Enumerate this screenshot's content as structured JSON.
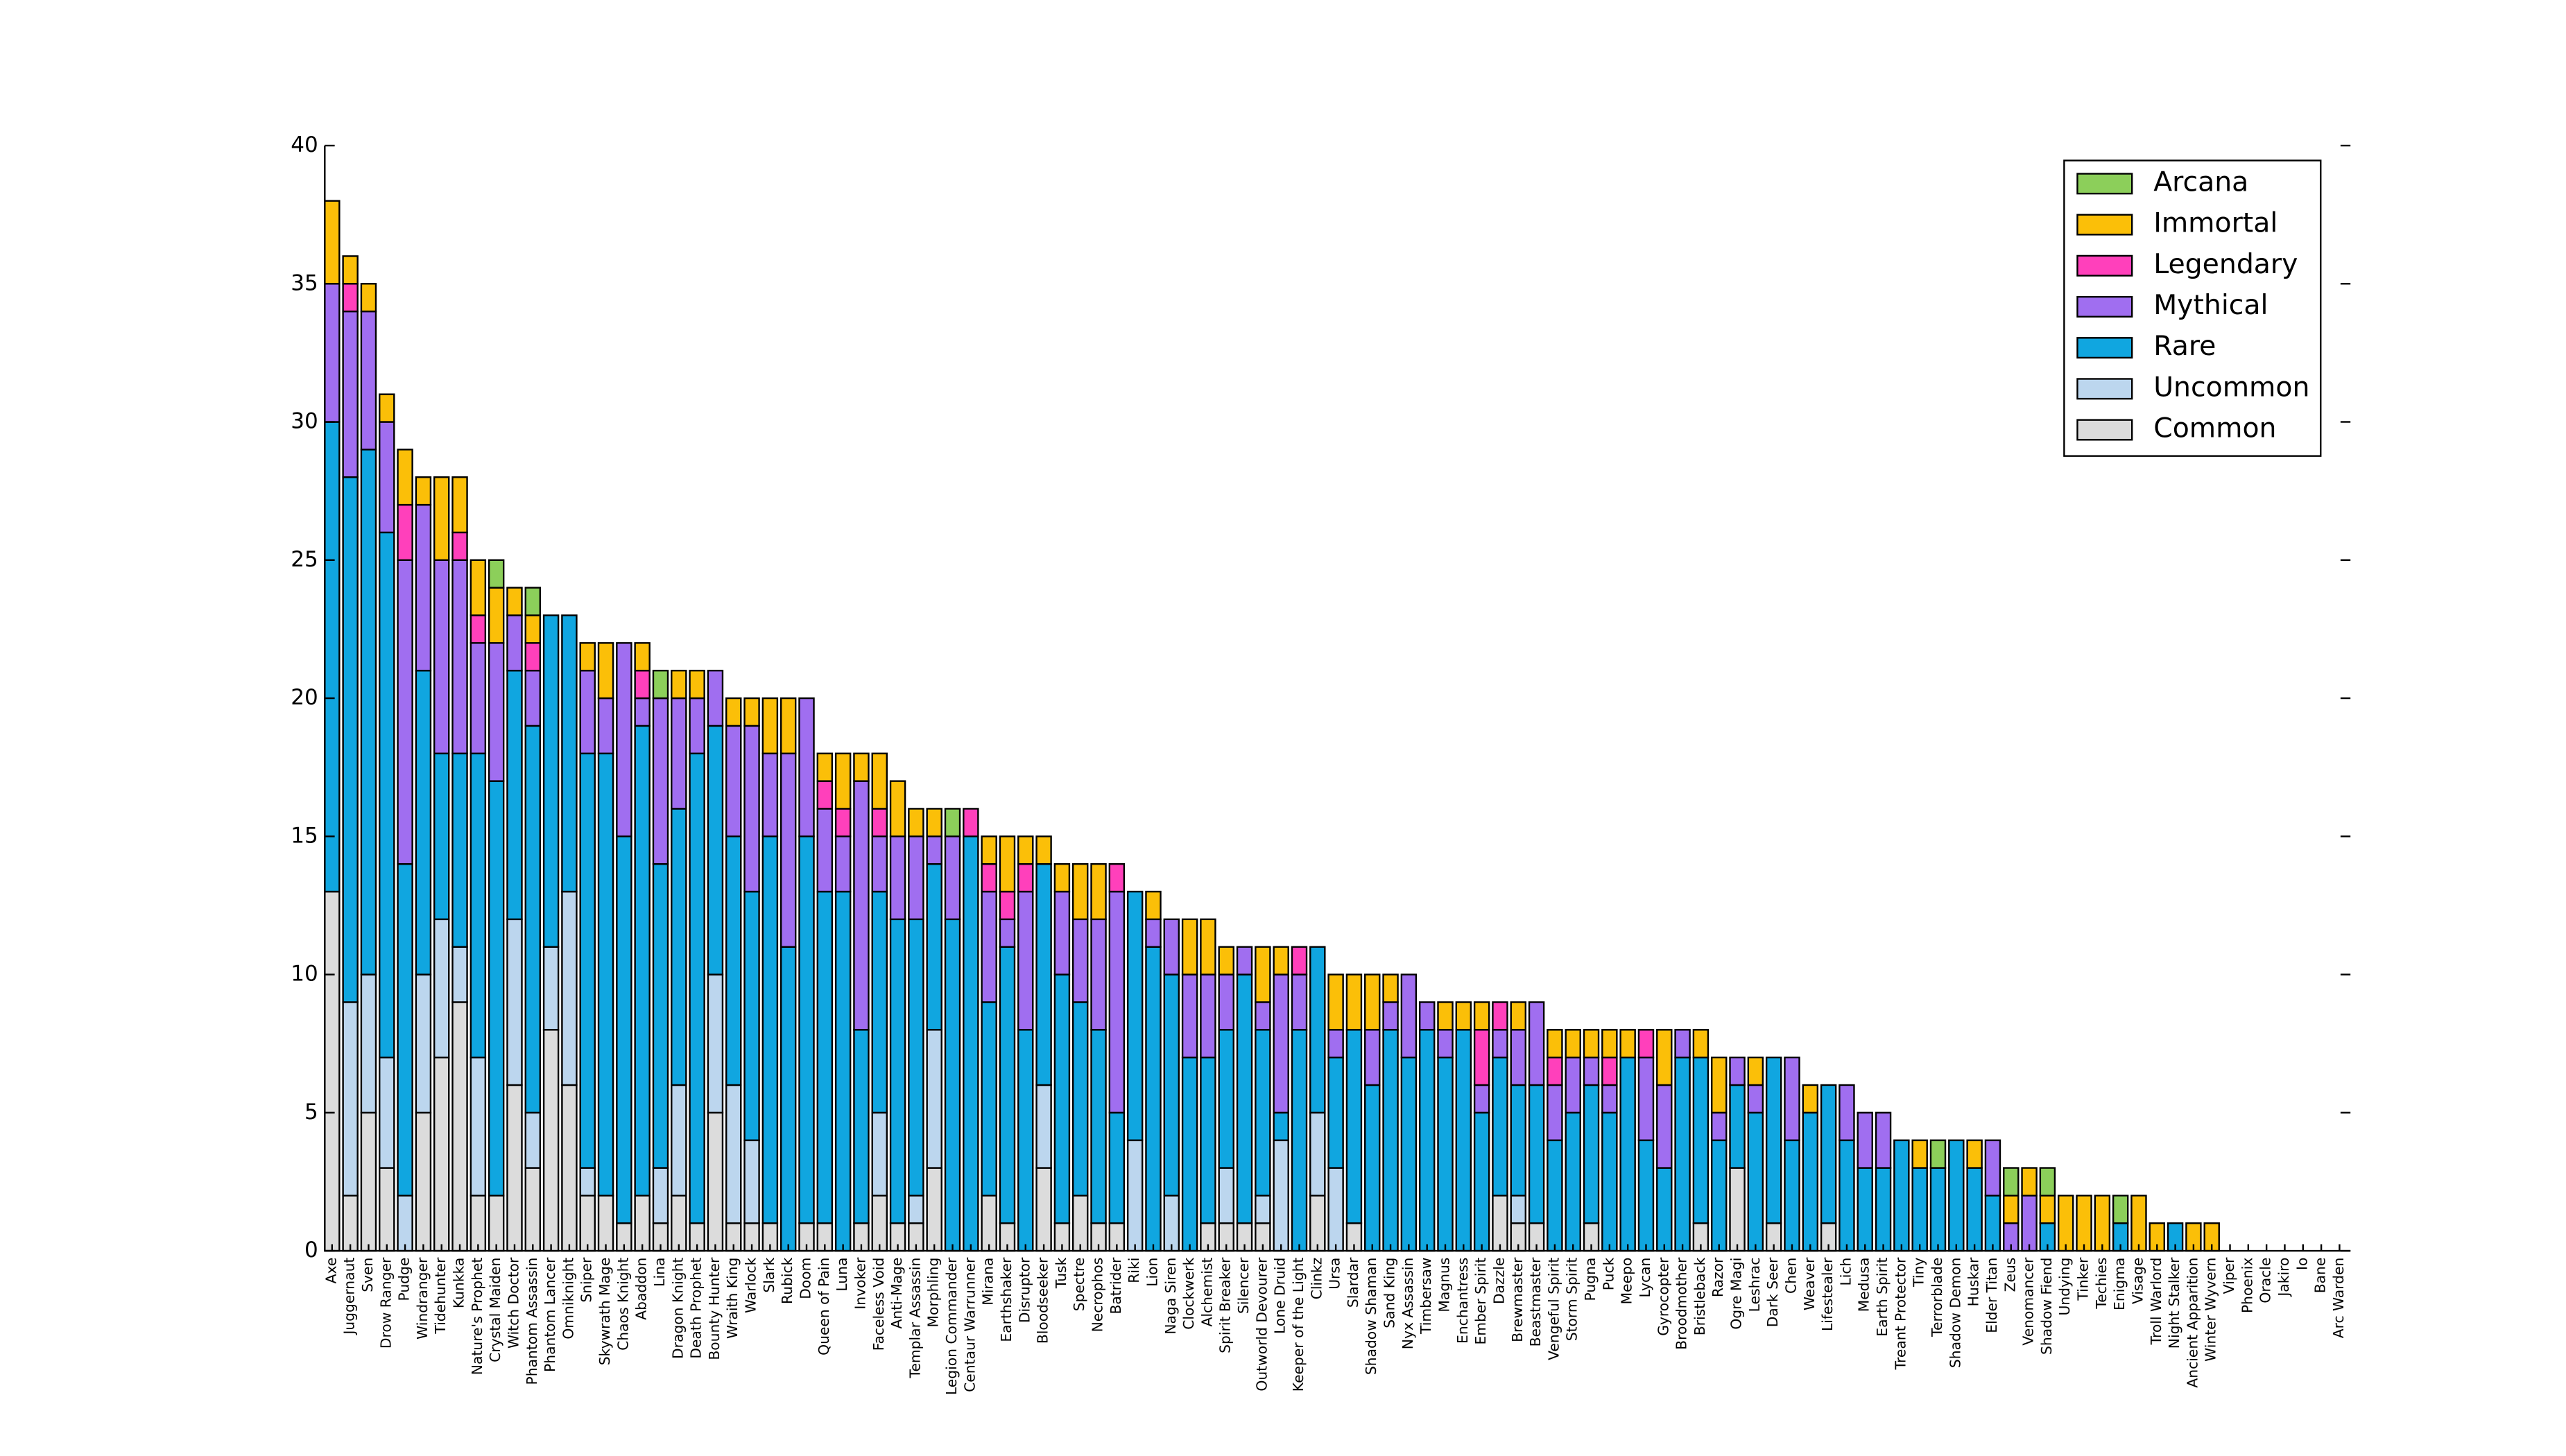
{
  "chart_data": {
    "type": "stacked-bar",
    "categories": [
      "Axe",
      "Juggernaut",
      "Sven",
      "Drow Ranger",
      "Pudge",
      "Windranger",
      "Tidehunter",
      "Kunkka",
      "Nature's Prophet",
      "Crystal Maiden",
      "Witch Doctor",
      "Phantom Assassin",
      "Phantom Lancer",
      "Omniknight",
      "Sniper",
      "Skywrath Mage",
      "Chaos Knight",
      "Abaddon",
      "Lina",
      "Dragon Knight",
      "Death Prophet",
      "Bounty Hunter",
      "Wraith King",
      "Warlock",
      "Slark",
      "Rubick",
      "Doom",
      "Queen of Pain",
      "Luna",
      "Invoker",
      "Faceless Void",
      "Anti-Mage",
      "Templar Assassin",
      "Morphling",
      "Legion Commander",
      "Centaur Warrunner",
      "Mirana",
      "Earthshaker",
      "Disruptor",
      "Bloodseeker",
      "Tusk",
      "Spectre",
      "Necrophos",
      "Batrider",
      "Riki",
      "Lion",
      "Naga Siren",
      "Clockwerk",
      "Alchemist",
      "Spirit Breaker",
      "Silencer",
      "Outworld Devourer",
      "Lone Druid",
      "Keeper of the Light",
      "Clinkz",
      "Ursa",
      "Slardar",
      "Shadow Shaman",
      "Sand King",
      "Nyx Assassin",
      "Timbersaw",
      "Magnus",
      "Enchantress",
      "Ember Spirit",
      "Dazzle",
      "Brewmaster",
      "Beastmaster",
      "Vengeful Spirit",
      "Storm Spirit",
      "Pugna",
      "Puck",
      "Meepo",
      "Lycan",
      "Gyrocopter",
      "Broodmother",
      "Bristleback",
      "Razor",
      "Ogre Magi",
      "Leshrac",
      "Dark Seer",
      "Chen",
      "Weaver",
      "Lifestealer",
      "Lich",
      "Medusa",
      "Earth Spirit",
      "Treant Protector",
      "Tiny",
      "Terrorblade",
      "Shadow Demon",
      "Huskar",
      "Elder Titan",
      "Zeus",
      "Venomancer",
      "Shadow Fiend",
      "Undying",
      "Tinker",
      "Techies",
      "Enigma",
      "Visage",
      "Troll Warlord",
      "Night Stalker",
      "Ancient Apparition",
      "Winter Wyvern",
      "Viper",
      "Phoenix",
      "Oracle",
      "Jakiro",
      "Io",
      "Bane",
      "Arc Warden"
    ],
    "series": [
      {
        "name": "Common",
        "color": "#dcdcdc",
        "values": [
          13,
          2,
          5,
          3,
          0,
          5,
          7,
          9,
          2,
          2,
          6,
          3,
          8,
          6,
          2,
          2,
          1,
          2,
          1,
          2,
          1,
          5,
          1,
          1,
          1,
          0,
          1,
          1,
          0,
          1,
          2,
          1,
          1,
          3,
          0,
          0,
          2,
          1,
          0,
          3,
          1,
          2,
          1,
          1,
          0,
          0,
          0,
          0,
          1,
          1,
          1,
          1,
          0,
          0,
          2,
          0,
          1,
          0,
          0,
          0,
          0,
          0,
          0,
          0,
          2,
          1,
          1,
          0,
          0,
          1,
          0,
          0,
          0,
          0,
          0,
          1,
          0,
          3,
          0,
          1,
          0,
          0,
          1,
          0,
          0,
          0,
          0,
          0,
          0,
          0,
          0,
          0,
          0,
          0,
          0,
          0,
          0,
          0,
          0,
          0,
          0,
          0,
          0,
          0,
          0,
          0,
          0,
          0,
          0,
          0,
          0
        ]
      },
      {
        "name": "Uncommon",
        "color": "#bcd6ee",
        "values": [
          0,
          7,
          5,
          4,
          2,
          5,
          5,
          2,
          5,
          0,
          6,
          2,
          3,
          7,
          1,
          0,
          0,
          0,
          2,
          4,
          0,
          5,
          5,
          3,
          0,
          0,
          0,
          0,
          0,
          0,
          3,
          0,
          1,
          5,
          0,
          0,
          0,
          0,
          0,
          3,
          0,
          0,
          0,
          0,
          4,
          0,
          2,
          0,
          0,
          2,
          0,
          1,
          4,
          0,
          3,
          3,
          0,
          0,
          0,
          0,
          0,
          0,
          0,
          0,
          0,
          1,
          0,
          0,
          0,
          0,
          0,
          0,
          0,
          0,
          0,
          0,
          0,
          0,
          0,
          0,
          0,
          0,
          0,
          0,
          0,
          0,
          0,
          0,
          0,
          0,
          0,
          0,
          0,
          0,
          0,
          0,
          0,
          0,
          0,
          0,
          0,
          0,
          0,
          0,
          0,
          0,
          0,
          0,
          0,
          0,
          0
        ]
      },
      {
        "name": "Rare",
        "color": "#10a6e0",
        "values": [
          17,
          19,
          19,
          19,
          12,
          11,
          6,
          7,
          11,
          15,
          9,
          14,
          12,
          10,
          15,
          16,
          14,
          17,
          11,
          10,
          17,
          9,
          9,
          9,
          14,
          11,
          14,
          12,
          13,
          7,
          8,
          11,
          10,
          6,
          12,
          15,
          7,
          10,
          8,
          8,
          9,
          7,
          7,
          4,
          9,
          11,
          8,
          7,
          6,
          5,
          9,
          6,
          1,
          8,
          6,
          4,
          7,
          6,
          8,
          7,
          8,
          7,
          8,
          5,
          5,
          4,
          5,
          4,
          5,
          5,
          5,
          7,
          4,
          3,
          7,
          6,
          4,
          3,
          5,
          6,
          4,
          5,
          5,
          4,
          3,
          3,
          4,
          3,
          3,
          4,
          3,
          2,
          0,
          0,
          1,
          0,
          0,
          0,
          1,
          0,
          0,
          1,
          0,
          0,
          0,
          0,
          0,
          0,
          0,
          0,
          0
        ]
      },
      {
        "name": "Mythical",
        "color": "#a06ef0",
        "values": [
          5,
          6,
          5,
          4,
          11,
          6,
          7,
          7,
          4,
          5,
          2,
          2,
          0,
          0,
          3,
          2,
          7,
          1,
          6,
          4,
          2,
          2,
          4,
          6,
          3,
          7,
          5,
          3,
          2,
          9,
          2,
          3,
          3,
          1,
          3,
          0,
          4,
          1,
          5,
          0,
          3,
          3,
          4,
          8,
          0,
          1,
          2,
          3,
          3,
          2,
          1,
          1,
          5,
          2,
          0,
          1,
          0,
          2,
          1,
          3,
          1,
          1,
          0,
          1,
          1,
          2,
          3,
          2,
          2,
          1,
          1,
          0,
          3,
          3,
          1,
          0,
          1,
          1,
          1,
          0,
          3,
          0,
          0,
          2,
          2,
          2,
          0,
          0,
          0,
          0,
          0,
          2,
          1,
          2,
          0,
          0,
          0,
          0,
          0,
          0,
          0,
          0,
          0,
          0,
          0,
          0,
          0,
          0,
          0,
          0,
          0
        ]
      },
      {
        "name": "Legendary",
        "color": "#ff40bb",
        "values": [
          0,
          1,
          0,
          0,
          2,
          0,
          0,
          1,
          1,
          0,
          0,
          1,
          0,
          0,
          0,
          0,
          0,
          1,
          0,
          0,
          0,
          0,
          0,
          0,
          0,
          0,
          0,
          1,
          1,
          0,
          1,
          0,
          0,
          0,
          0,
          1,
          1,
          1,
          1,
          0,
          0,
          0,
          0,
          1,
          0,
          0,
          0,
          0,
          0,
          0,
          0,
          0,
          0,
          1,
          0,
          0,
          0,
          0,
          0,
          0,
          0,
          0,
          0,
          2,
          1,
          0,
          0,
          1,
          0,
          0,
          1,
          0,
          1,
          0,
          0,
          0,
          0,
          0,
          0,
          0,
          0,
          0,
          0,
          0,
          0,
          0,
          0,
          0,
          0,
          0,
          0,
          0,
          0,
          0,
          0,
          0,
          0,
          0,
          0,
          0,
          0,
          0,
          0,
          0,
          0,
          0,
          0,
          0,
          0,
          0,
          0
        ]
      },
      {
        "name": "Immortal",
        "color": "#fbbf08",
        "values": [
          3,
          1,
          1,
          1,
          2,
          1,
          3,
          2,
          2,
          2,
          1,
          1,
          0,
          0,
          1,
          2,
          0,
          1,
          0,
          1,
          1,
          0,
          1,
          1,
          2,
          2,
          0,
          1,
          2,
          1,
          2,
          2,
          1,
          1,
          0,
          0,
          1,
          2,
          1,
          1,
          1,
          2,
          2,
          0,
          0,
          1,
          0,
          2,
          2,
          1,
          0,
          2,
          1,
          0,
          0,
          2,
          2,
          2,
          1,
          0,
          0,
          1,
          1,
          1,
          0,
          1,
          0,
          1,
          1,
          1,
          1,
          1,
          0,
          2,
          0,
          1,
          2,
          0,
          1,
          0,
          0,
          1,
          0,
          0,
          0,
          0,
          0,
          1,
          0,
          0,
          1,
          0,
          1,
          1,
          1,
          2,
          2,
          2,
          0,
          2,
          1,
          0,
          1,
          1,
          0,
          0,
          0,
          0,
          0,
          0,
          0
        ]
      },
      {
        "name": "Arcana",
        "color": "#8ccf5a",
        "values": [
          0,
          0,
          0,
          0,
          0,
          0,
          0,
          0,
          0,
          1,
          0,
          1,
          0,
          0,
          0,
          0,
          0,
          0,
          1,
          0,
          0,
          0,
          0,
          0,
          0,
          0,
          0,
          0,
          0,
          0,
          0,
          0,
          0,
          0,
          1,
          0,
          0,
          0,
          0,
          0,
          0,
          0,
          0,
          0,
          0,
          0,
          0,
          0,
          0,
          0,
          0,
          0,
          0,
          0,
          0,
          0,
          0,
          0,
          0,
          0,
          0,
          0,
          0,
          0,
          0,
          0,
          0,
          0,
          0,
          0,
          0,
          0,
          0,
          0,
          0,
          0,
          0,
          0,
          0,
          0,
          0,
          0,
          0,
          0,
          0,
          0,
          0,
          0,
          1,
          0,
          0,
          0,
          1,
          0,
          1,
          0,
          0,
          0,
          1,
          0,
          0,
          0,
          0,
          0,
          0,
          0,
          0,
          0,
          0,
          0,
          0
        ]
      }
    ],
    "ylim": [
      0,
      40
    ],
    "yticks": [
      0,
      5,
      10,
      15,
      20,
      25,
      30,
      35,
      40
    ],
    "grid": false,
    "legend": "upper right"
  }
}
